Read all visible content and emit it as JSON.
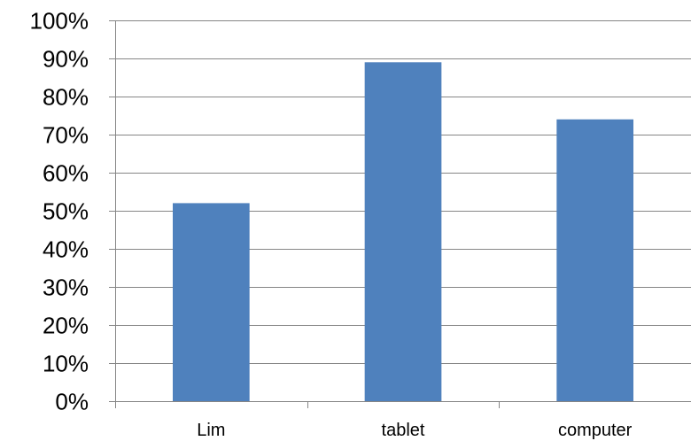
{
  "chart_data": {
    "type": "bar",
    "categories": [
      "Lim",
      "tablet",
      "computer"
    ],
    "values": [
      0.52,
      0.89,
      0.74
    ],
    "ylim": [
      0,
      1
    ],
    "ytick_labels": [
      "0%",
      "10%",
      "20%",
      "30%",
      "40%",
      "50%",
      "60%",
      "70%",
      "80%",
      "90%",
      "100%"
    ],
    "grid": "horizontal",
    "legend": "none",
    "title": "",
    "xlabel": "",
    "ylabel": "",
    "colors": {
      "bar": "#4f81bd",
      "grid": "#868686",
      "axis": "#868686"
    }
  }
}
